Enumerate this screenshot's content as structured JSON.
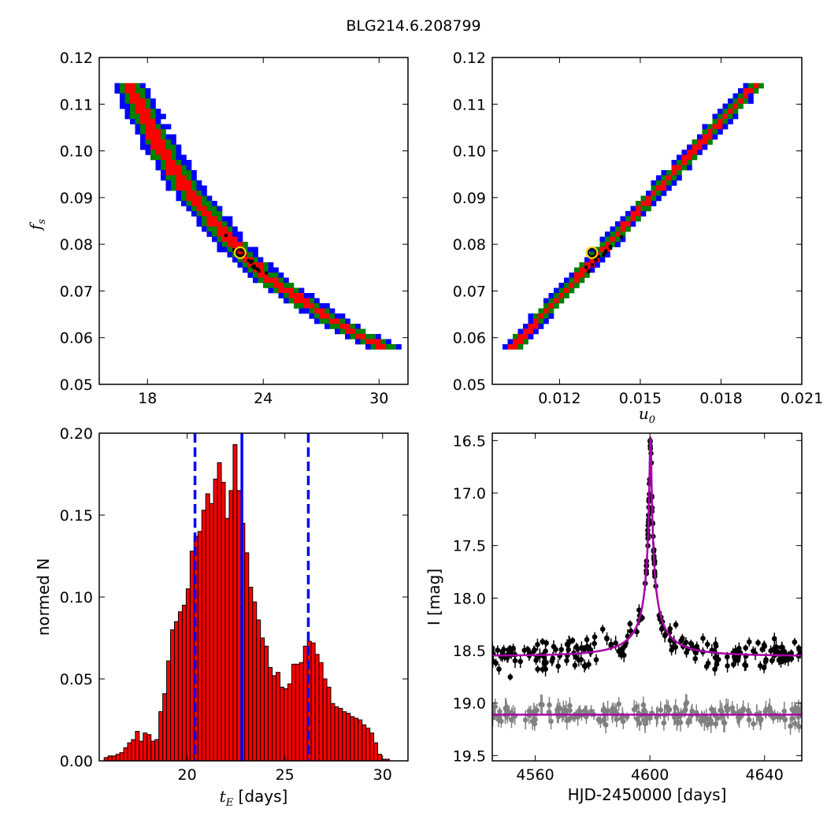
{
  "figure_title": "BLG214.6.208799",
  "chart_data": [
    {
      "id": "fs_vs_tE",
      "type": "heatmap",
      "title": "",
      "xlabel": "",
      "ylabel_main": "f",
      "ylabel_sub": "s",
      "xlim": [
        15.5,
        31.5
      ],
      "ylim": [
        0.05,
        0.12
      ],
      "xticks": [
        18,
        24,
        30
      ],
      "xtick_labels": [
        "18",
        "24",
        "30"
      ],
      "yticks": [
        0.05,
        0.06,
        0.07,
        0.08,
        0.09,
        0.1,
        0.11,
        0.12
      ],
      "ytick_labels": [
        "0.05",
        "0.06",
        "0.07",
        "0.08",
        "0.09",
        "0.10",
        "0.11",
        "0.12"
      ],
      "levels": [
        {
          "name": "outer",
          "color": "#0000ff"
        },
        {
          "name": "middle",
          "color": "#008000"
        },
        {
          "name": "inner",
          "color": "#ff0000"
        },
        {
          "name": "core",
          "color": "#000000"
        }
      ],
      "ridge": [
        [
          17.0,
          0.1145
        ],
        [
          18.5,
          0.102
        ],
        [
          20.0,
          0.092
        ],
        [
          21.5,
          0.0845
        ],
        [
          22.8,
          0.0782
        ],
        [
          24.5,
          0.072
        ],
        [
          26.5,
          0.0665
        ],
        [
          28.5,
          0.0615
        ],
        [
          30.5,
          0.0575
        ]
      ],
      "best_fit": {
        "x": 22.8,
        "y": 0.0782,
        "color": "#ffd700"
      }
    },
    {
      "id": "fs_vs_u0",
      "type": "heatmap",
      "title": "",
      "xlabel_main": "u",
      "xlabel_sub": "0",
      "ylabel": "",
      "xlim": [
        0.0095,
        0.021
      ],
      "ylim": [
        0.05,
        0.12
      ],
      "xticks": [
        0.012,
        0.015,
        0.018,
        0.021
      ],
      "xtick_labels": [
        "0.012",
        "0.015",
        "0.018",
        "0.021"
      ],
      "yticks": [
        0.05,
        0.06,
        0.07,
        0.08,
        0.09,
        0.1,
        0.11,
        0.12
      ],
      "ytick_labels": [
        "0.05",
        "0.06",
        "0.07",
        "0.08",
        "0.09",
        "0.10",
        "0.11",
        "0.12"
      ],
      "levels": [
        {
          "name": "outer",
          "color": "#0000ff"
        },
        {
          "name": "middle",
          "color": "#008000"
        },
        {
          "name": "inner",
          "color": "#ff0000"
        },
        {
          "name": "core",
          "color": "#000000"
        }
      ],
      "ridge": [
        [
          0.0102,
          0.0575
        ],
        [
          0.0193,
          0.1145
        ]
      ],
      "best_fit": {
        "x": 0.0132,
        "y": 0.0782,
        "color": "#ffd700"
      }
    },
    {
      "id": "tE_histogram",
      "type": "bar",
      "title": "",
      "xlabel_main": "t",
      "xlabel_sub": "E",
      "xlabel_rest": " [days]",
      "ylabel": "normed N",
      "xlim": [
        15.5,
        31.3
      ],
      "ylim": [
        0.0,
        0.2
      ],
      "xticks": [
        20,
        25,
        30
      ],
      "xtick_labels": [
        "20",
        "25",
        "30"
      ],
      "yticks": [
        0.0,
        0.05,
        0.1,
        0.15,
        0.2
      ],
      "ytick_labels": [
        "0.00",
        "0.05",
        "0.10",
        "0.15",
        "0.20"
      ],
      "bar_color": "#ff0000",
      "bin_start": 15.75,
      "bin_width": 0.2,
      "values": [
        0.002,
        0.003,
        0.003,
        0.004,
        0.005,
        0.008,
        0.011,
        0.013,
        0.018,
        0.012,
        0.017,
        0.016,
        0.012,
        0.013,
        0.03,
        0.041,
        0.061,
        0.08,
        0.085,
        0.091,
        0.095,
        0.105,
        0.128,
        0.137,
        0.14,
        0.153,
        0.163,
        0.157,
        0.172,
        0.182,
        0.17,
        0.148,
        0.165,
        0.193,
        0.165,
        0.145,
        0.127,
        0.106,
        0.097,
        0.086,
        0.075,
        0.07,
        0.057,
        0.052,
        0.054,
        0.045,
        0.044,
        0.047,
        0.059,
        0.059,
        0.06,
        0.07,
        0.073,
        0.072,
        0.065,
        0.06,
        0.05,
        0.045,
        0.035,
        0.033,
        0.032,
        0.03,
        0.029,
        0.027,
        0.026,
        0.025,
        0.022,
        0.02,
        0.017,
        0.011,
        0.004,
        0.001,
        0.001
      ],
      "vlines": [
        {
          "x": 20.4,
          "style": "dashed",
          "color": "#0000ff"
        },
        {
          "x": 22.8,
          "style": "solid",
          "color": "#0000ff"
        },
        {
          "x": 26.2,
          "style": "dashed",
          "color": "#0000ff"
        }
      ]
    },
    {
      "id": "light_curve",
      "type": "scatter",
      "title": "",
      "xlabel": "HJD-2450000 [days]",
      "ylabel": "I [mag]",
      "xlim": [
        4545,
        4653
      ],
      "ylim": [
        19.55,
        16.43
      ],
      "y_inverted": true,
      "xticks": [
        4560,
        4600,
        4640
      ],
      "xtick_labels": [
        "4560",
        "4600",
        "4640"
      ],
      "yticks": [
        16.5,
        17.0,
        17.5,
        18.0,
        18.5,
        19.0,
        19.5
      ],
      "ytick_labels": [
        "16.5",
        "17.0",
        "17.5",
        "18.0",
        "18.5",
        "19.0",
        "19.5"
      ],
      "model": {
        "color": "#aa00aa",
        "baseline": 18.55,
        "peak_time": 4600.2,
        "peak_mag": 16.47,
        "tE": 22.8,
        "u0": 0.0132
      },
      "series": [
        {
          "color": "#000000",
          "baseline": 18.55,
          "scatter": 0.07,
          "error": 0.05
        },
        {
          "color": "#808080",
          "baseline": 19.11,
          "scatter": 0.05,
          "model_line": 19.11,
          "error": 0.07
        }
      ]
    }
  ]
}
